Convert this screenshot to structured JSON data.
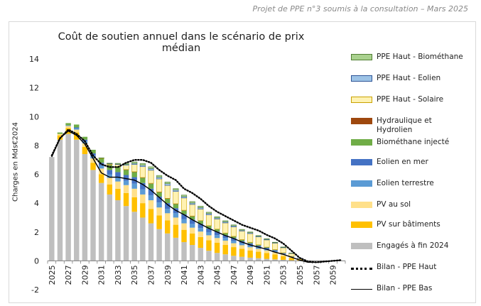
{
  "header_note": "Projet de PPE n°3 soumis à la consultation – Mars 2025",
  "chart_data": {
    "type": "bar",
    "subtype": "stacked-bar-with-lines",
    "title": "Coût de soutien annuel dans le scénario de prix médian",
    "xlabel": "",
    "ylabel": "Charges en Mds€2024",
    "ylim": [
      -2,
      14
    ],
    "yticks": [
      -2,
      0,
      2,
      4,
      6,
      8,
      10,
      12,
      14
    ],
    "grid": false,
    "legend_position": "right",
    "categories": [
      "2025",
      "2026",
      "2027",
      "2028",
      "2029",
      "2030",
      "2031",
      "2032",
      "2033",
      "2034",
      "2035",
      "2036",
      "2037",
      "2038",
      "2039",
      "2040",
      "2041",
      "2042",
      "2043",
      "2044",
      "2045",
      "2046",
      "2047",
      "2048",
      "2049",
      "2050",
      "2051",
      "2052",
      "2053",
      "2054",
      "2055",
      "2056",
      "2057",
      "2058",
      "2059",
      "2060"
    ],
    "xtick_labels": [
      "2025",
      "2027",
      "2029",
      "2031",
      "2033",
      "2035",
      "2037",
      "2039",
      "2041",
      "2043",
      "2045",
      "2047",
      "2049",
      "2051",
      "2053",
      "2055",
      "2057",
      "2059"
    ],
    "series": [
      {
        "name": "Engagés à fin 2024",
        "color": "#bfbfbf",
        "values": [
          7.2,
          8.4,
          8.8,
          8.4,
          7.4,
          6.3,
          5.4,
          4.6,
          4.2,
          3.8,
          3.4,
          3.0,
          2.6,
          2.2,
          1.9,
          1.6,
          1.3,
          1.1,
          0.9,
          0.7,
          0.55,
          0.45,
          0.35,
          0.28,
          0.22,
          0.18,
          0.14,
          0.1,
          0.07,
          0.04,
          0.02,
          0.01,
          0.0,
          0.0,
          0.0,
          0.0
        ]
      },
      {
        "name": "PV sur bâtiments",
        "color": "#ffc000",
        "values": [
          0,
          0.3,
          0.4,
          0.5,
          0.5,
          0.5,
          0.6,
          0.7,
          0.8,
          0.9,
          1.0,
          1.0,
          1.0,
          0.95,
          0.9,
          0.9,
          0.85,
          0.8,
          0.75,
          0.72,
          0.7,
          0.65,
          0.6,
          0.55,
          0.5,
          0.45,
          0.4,
          0.35,
          0.25,
          0.15,
          0.05,
          0,
          0,
          0,
          0,
          0
        ]
      },
      {
        "name": "PV au sol",
        "color": "#ffe08a",
        "values": [
          0,
          0.1,
          0.15,
          0.2,
          0.25,
          0.3,
          0.4,
          0.45,
          0.5,
          0.55,
          0.6,
          0.6,
          0.6,
          0.55,
          0.5,
          0.5,
          0.45,
          0.4,
          0.38,
          0.35,
          0.33,
          0.3,
          0.27,
          0.25,
          0.22,
          0.2,
          0.18,
          0.15,
          0.12,
          0.06,
          0.02,
          0,
          0,
          0,
          0,
          0
        ]
      },
      {
        "name": "Eolien terrestre",
        "color": "#5b9bd5",
        "values": [
          0,
          0,
          0.05,
          0.1,
          0.15,
          0.2,
          0.2,
          0.25,
          0.3,
          0.3,
          0.35,
          0.35,
          0.35,
          0.35,
          0.3,
          0.3,
          0.28,
          0.26,
          0.24,
          0.22,
          0.2,
          0.18,
          0.16,
          0.14,
          0.12,
          0.1,
          0.08,
          0.06,
          0.04,
          0.02,
          0,
          0,
          0,
          0,
          0,
          0
        ]
      },
      {
        "name": "Eolien en mer",
        "color": "#4472c4",
        "values": [
          0,
          0,
          0,
          0.05,
          0.1,
          0.15,
          0.2,
          0.3,
          0.35,
          0.4,
          0.45,
          0.45,
          0.45,
          0.4,
          0.4,
          0.35,
          0.35,
          0.3,
          0.3,
          0.25,
          0.25,
          0.2,
          0.2,
          0.15,
          0.15,
          0.12,
          0.1,
          0.08,
          0.05,
          0.03,
          0,
          0,
          0,
          0,
          0,
          0
        ]
      },
      {
        "name": "Biométhane injecté",
        "color": "#70ad47",
        "values": [
          0,
          0.1,
          0.15,
          0.2,
          0.2,
          0.25,
          0.3,
          0.35,
          0.35,
          0.35,
          0.35,
          0.35,
          0.35,
          0.3,
          0.3,
          0.28,
          0.25,
          0.22,
          0.2,
          0.18,
          0.15,
          0.13,
          0.1,
          0.08,
          0.06,
          0.05,
          0.04,
          0.03,
          0.02,
          0.01,
          0,
          0,
          0,
          0,
          0,
          0
        ]
      },
      {
        "name": "Hydraulique et Hydrolien",
        "color": "#9e480e",
        "values": [
          0,
          0,
          0,
          0,
          0,
          0,
          0,
          0.02,
          0.03,
          0.03,
          0.03,
          0.03,
          0.03,
          0.03,
          0.03,
          0.03,
          0.03,
          0.03,
          0.02,
          0.02,
          0.02,
          0.02,
          0.02,
          0.02,
          0.02,
          0.01,
          0.01,
          0.01,
          0.01,
          0,
          0,
          0,
          0,
          0,
          0,
          0
        ]
      },
      {
        "name": "PPE Haut - Solaire",
        "color": "#fff2b3",
        "border": "#c9a200",
        "values": [
          0,
          0,
          0,
          0,
          0,
          0,
          0.02,
          0.05,
          0.15,
          0.3,
          0.5,
          0.75,
          0.9,
          0.9,
          0.9,
          0.85,
          0.85,
          0.8,
          0.8,
          0.75,
          0.7,
          0.7,
          0.65,
          0.6,
          0.6,
          0.55,
          0.5,
          0.45,
          0.35,
          0.2,
          0.08,
          0,
          0,
          0,
          0,
          0
        ]
      },
      {
        "name": "PPE Haut - Eolien",
        "color": "#9dc3e6",
        "border": "#2f5597",
        "values": [
          0,
          0,
          0,
          0,
          0,
          0,
          0,
          0.02,
          0.03,
          0.05,
          0.08,
          0.1,
          0.12,
          0.12,
          0.12,
          0.1,
          0.1,
          0.1,
          0.1,
          0.1,
          0.08,
          0.08,
          0.08,
          0.06,
          0.06,
          0.05,
          0.05,
          0.04,
          0.03,
          0.02,
          0.01,
          0,
          0,
          0,
          0,
          0
        ]
      },
      {
        "name": "PPE Haut - Biométhane",
        "color": "#a9d18e",
        "border": "#507e32",
        "values": [
          0,
          0,
          0,
          0,
          0,
          0,
          0.02,
          0.03,
          0.05,
          0.08,
          0.1,
          0.12,
          0.12,
          0.12,
          0.12,
          0.1,
          0.1,
          0.1,
          0.1,
          0.08,
          0.08,
          0.07,
          0.06,
          0.05,
          0.05,
          0.04,
          0.03,
          0.02,
          0.02,
          0.01,
          0,
          0,
          0,
          0,
          0,
          0
        ]
      }
    ],
    "lines": [
      {
        "name": "Bilan - PPE Haut",
        "color": "#000000",
        "style": "dotted",
        "values": [
          7.3,
          8.5,
          9.1,
          8.8,
          8.3,
          7.3,
          6.7,
          6.5,
          6.5,
          6.8,
          7.0,
          7.0,
          6.8,
          6.3,
          5.9,
          5.6,
          5.0,
          4.7,
          4.3,
          3.8,
          3.4,
          3.1,
          2.8,
          2.5,
          2.3,
          2.1,
          1.8,
          1.55,
          1.2,
          0.7,
          0.2,
          -0.05,
          -0.1,
          -0.05,
          0.0,
          0.05
        ]
      },
      {
        "name": "Bilan - PPE Bas",
        "color": "#000000",
        "style": "solid",
        "values": [
          7.2,
          8.5,
          9.0,
          8.7,
          8.1,
          7.1,
          6.1,
          5.8,
          5.8,
          5.7,
          5.6,
          5.3,
          4.9,
          4.4,
          3.9,
          3.5,
          3.2,
          2.85,
          2.55,
          2.25,
          2.0,
          1.75,
          1.55,
          1.3,
          1.1,
          0.95,
          0.8,
          0.6,
          0.45,
          0.25,
          0.05,
          -0.1,
          -0.1,
          -0.05,
          0.0,
          0.05
        ]
      }
    ]
  },
  "legend": {
    "items": [
      {
        "label": "PPE Haut - Biométhane",
        "kind": "box",
        "color": "#a9d18e",
        "border": "#507e32"
      },
      {
        "label": "PPE Haut - Eolien",
        "kind": "box",
        "color": "#9dc3e6",
        "border": "#2f5597"
      },
      {
        "label": "PPE Haut - Solaire",
        "kind": "box",
        "color": "#fff2b3",
        "border": "#c9a200"
      },
      {
        "label": "Hydraulique et Hydrolien",
        "kind": "box",
        "color": "#9e480e",
        "border": ""
      },
      {
        "label": "Biométhane injecté",
        "kind": "box",
        "color": "#70ad47",
        "border": ""
      },
      {
        "label": "Eolien en mer",
        "kind": "box",
        "color": "#4472c4",
        "border": ""
      },
      {
        "label": "Eolien terrestre",
        "kind": "box",
        "color": "#5b9bd5",
        "border": ""
      },
      {
        "label": "PV au sol",
        "kind": "box",
        "color": "#ffe08a",
        "border": ""
      },
      {
        "label": "PV sur bâtiments",
        "kind": "box",
        "color": "#ffc000",
        "border": ""
      },
      {
        "label": "Engagés à fin 2024",
        "kind": "box",
        "color": "#bfbfbf",
        "border": ""
      },
      {
        "label": "Bilan - PPE Haut",
        "kind": "dotted",
        "color": "#000000",
        "border": ""
      },
      {
        "label": "Bilan - PPE Bas",
        "kind": "solid",
        "color": "#000000",
        "border": ""
      }
    ]
  }
}
